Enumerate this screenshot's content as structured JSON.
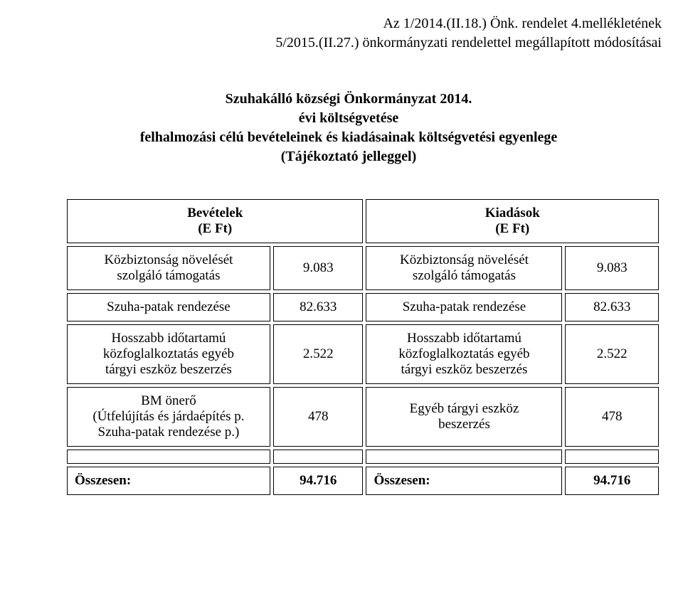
{
  "header": {
    "line1": "Az 1/2014.(II.18.) Önk. rendelet 4.mellékletének",
    "line2": "5/2015.(II.27.) önkormányzati rendelettel megállapított módosításai"
  },
  "title": {
    "line1": "Szuhakálló községi Önkormányzat 2014.",
    "line2": "évi költségvetése",
    "line3": "felhalmozási célú bevételeinek és kiadásainak költségvetési egyenlege",
    "line4": "(Tájékoztató jelleggel)"
  },
  "table": {
    "head_rev_l1": "Bevételek",
    "head_rev_l2": "(E Ft)",
    "head_exp_l1": "Kiadások",
    "head_exp_l2": "(E Ft)",
    "rows": [
      {
        "rev_label_l1": "Közbiztonság növelését",
        "rev_label_l2": "szolgáló támogatás",
        "rev_value": "9.083",
        "exp_label_l1": "Közbiztonság növelését",
        "exp_label_l2": "szolgáló támogatás",
        "exp_value": "9.083"
      },
      {
        "rev_label": "Szuha-patak rendezése",
        "rev_value": "82.633",
        "exp_label": "Szuha-patak rendezése",
        "exp_value": "82.633"
      },
      {
        "rev_label_l1": "Hosszabb időtartamú",
        "rev_label_l2": "közfoglalkoztatás egyéb",
        "rev_label_l3": "tárgyi eszköz beszerzés",
        "rev_value": "2.522",
        "exp_label_l1": "Hosszabb időtartamú",
        "exp_label_l2": "közfoglalkoztatás egyéb",
        "exp_label_l3": "tárgyi eszköz beszerzés",
        "exp_value": "2.522"
      },
      {
        "rev_label_l1": "BM önerő",
        "rev_label_l2": "(Útfelújítás és járdaépítés p.",
        "rev_label_l3": "Szuha-patak rendezése p.)",
        "rev_value": "478",
        "exp_label_l1": "Egyéb tárgyi eszköz",
        "exp_label_l2": "beszerzés",
        "exp_value": "478"
      }
    ],
    "total_label": "Összesen:",
    "total_value": "94.716"
  }
}
